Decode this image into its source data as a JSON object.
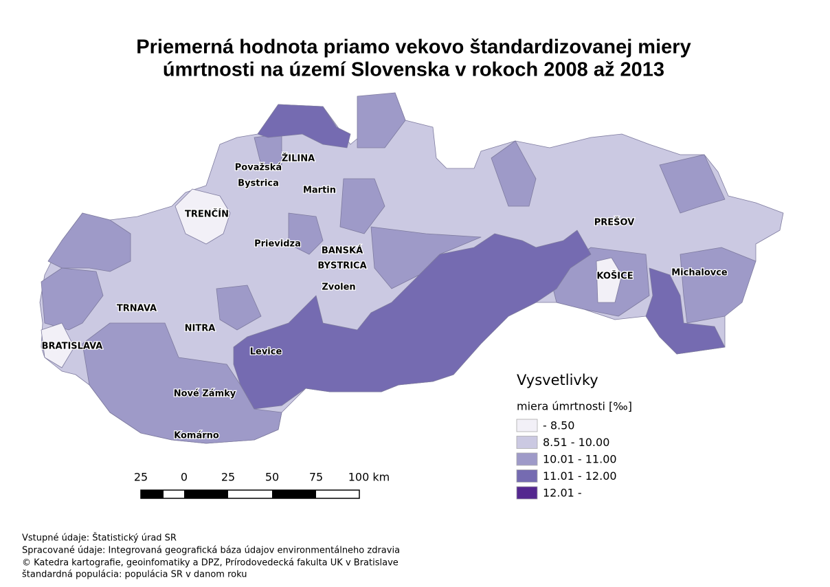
{
  "title": [
    "Priemerná hodnota priamo vekovo štandardizovanej miery",
    "úmrtnosti na území Slovenska v rokoch 2008 až 2013"
  ],
  "places": [
    "ŽILINA",
    "Považská",
    "Bystrica",
    "Martin",
    "TRENČÍN",
    "PREŠOV",
    "Prievidza",
    "BANSKÁ",
    "BYSTRICA",
    "Zvolen",
    "KOŠICE",
    "Michalovce",
    "TRNAVA",
    "NITRA",
    "BRATISLAVA",
    "Levice",
    "Nové Zámky",
    "Komárno"
  ],
  "legend": {
    "title": "Vysvetlivky",
    "subtitle": "miera úmrtnosti [‰]",
    "items": [
      {
        "label": " - 8.50",
        "color": "#f2f0f7"
      },
      {
        "label": "8.51 - 10.00",
        "color": "#cbc9e2"
      },
      {
        "label": "10.01 - 11.00",
        "color": "#9e9ac8"
      },
      {
        "label": "11.01 - 12.00",
        "color": "#756bb1"
      },
      {
        "label": "12.01 -",
        "color": "#54278f"
      }
    ]
  },
  "scale": [
    "25",
    "0",
    "25",
    "50",
    "75",
    "100 km"
  ],
  "footer": [
    "Vstupné údaje: Štatistický úrad SR",
    "Spracované údaje: Integrovaná geografická báza údajov environmentálneho zdravia",
    "© Katedra kartografie, geoinfomatiky a DPZ, Prírodovedecká fakulta UK v Bratislave",
    "štandardná populácia: populácia SR v danom roku"
  ]
}
